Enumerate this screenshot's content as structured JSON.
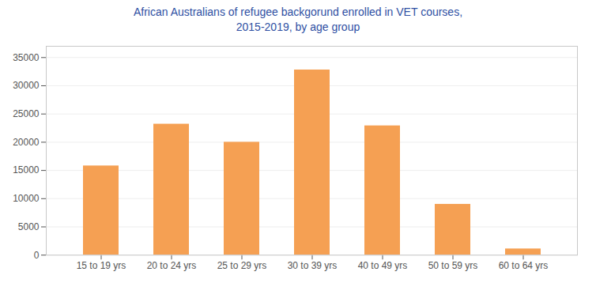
{
  "chart_data": {
    "type": "bar",
    "title": "African Australians of refugee backgorund enrolled in VET courses,\n2015-2019, by age group",
    "categories": [
      "15 to 19 yrs",
      "20 to 24 yrs",
      "25 to 29 yrs",
      "30 to 39 yrs",
      "40 to 49 yrs",
      "50 to 59 yrs",
      "60 to 64 yrs"
    ],
    "values": [
      15800,
      23200,
      20000,
      32800,
      22900,
      9000,
      1100
    ],
    "color": "#F5A053",
    "ylim": [
      0,
      37000
    ],
    "yticks": [
      0,
      5000,
      10000,
      15000,
      20000,
      25000,
      30000,
      35000
    ],
    "grid": true
  }
}
